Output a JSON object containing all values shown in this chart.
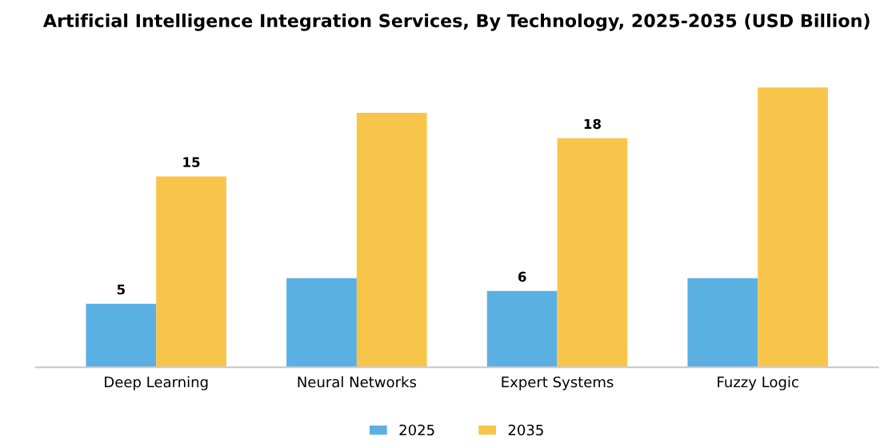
{
  "chart_data": {
    "type": "bar",
    "title": "Artificial Intelligence Integration Services, By Technology, 2025-2035 (USD Billion)",
    "categories": [
      "Deep Learning",
      "Neural Networks",
      "Expert Systems",
      "Fuzzy Logic"
    ],
    "series": [
      {
        "name": "2025",
        "color": "#5aafe3",
        "values": [
          5,
          7,
          6,
          7
        ],
        "value_labels": [
          "5",
          null,
          "6",
          null
        ]
      },
      {
        "name": "2035",
        "color": "#f8c54b",
        "values": [
          15,
          20,
          18,
          22
        ],
        "value_labels": [
          "15",
          null,
          "18",
          null
        ]
      }
    ],
    "legend": "bottom"
  }
}
